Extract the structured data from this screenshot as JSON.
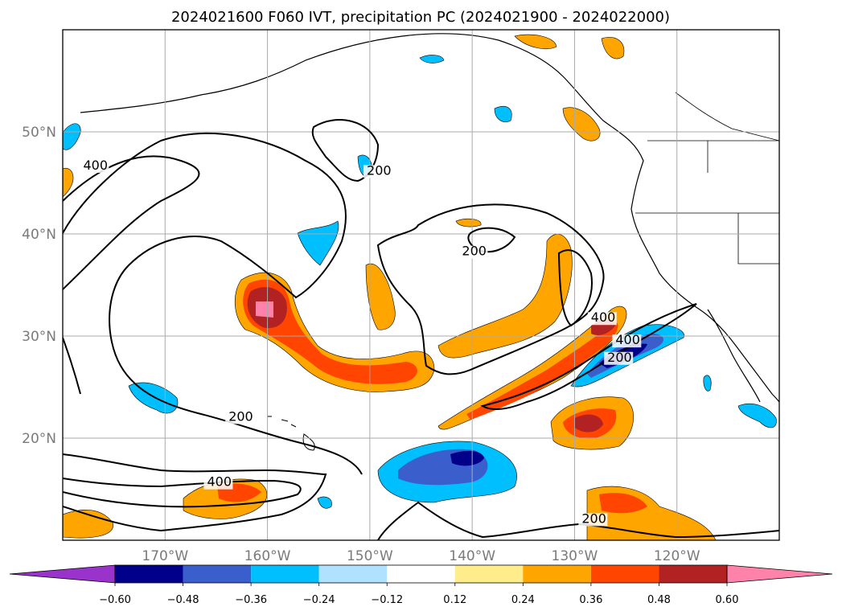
{
  "chart_data": {
    "type": "map-contour",
    "title": "2024021600 F060 IVT, precipitation PC (2024021900 - 2024022000)",
    "lon_ticks": [
      {
        "lon": -170,
        "label": "170°W"
      },
      {
        "lon": -160,
        "label": "160°W"
      },
      {
        "lon": -150,
        "label": "150°W"
      },
      {
        "lon": -140,
        "label": "140°W"
      },
      {
        "lon": -130,
        "label": "130°W"
      },
      {
        "lon": -120,
        "label": "120°W"
      }
    ],
    "lat_ticks": [
      {
        "lat": 50,
        "label": "50°N"
      },
      {
        "lat": 40,
        "label": "40°N"
      },
      {
        "lat": 30,
        "label": "30°N"
      },
      {
        "lat": 20,
        "label": "20°N"
      }
    ],
    "extent": {
      "lon": [
        -180,
        -110
      ],
      "lat": [
        10,
        60
      ]
    },
    "grid": true,
    "ivt_contour_levels": [
      200,
      400
    ],
    "ivt_contour_labels": [
      {
        "text": "400",
        "lon": -178,
        "lat": 46.3
      },
      {
        "text": "200",
        "lon": -150.3,
        "lat": 45.8
      },
      {
        "text": "200",
        "lon": -141,
        "lat": 37.9
      },
      {
        "text": "400",
        "lon": -128.4,
        "lat": 31.4
      },
      {
        "text": "400",
        "lon": -126,
        "lat": 29.2
      },
      {
        "text": "200",
        "lon": -126.8,
        "lat": 27.5
      },
      {
        "text": "200",
        "lon": -163.8,
        "lat": 21.7
      },
      {
        "text": "400",
        "lon": -165.9,
        "lat": 15.3
      },
      {
        "text": "200",
        "lon": -129.3,
        "lat": 11.7
      }
    ],
    "colorbar": {
      "boundaries": [
        -0.72,
        -0.6,
        -0.48,
        -0.36,
        -0.24,
        -0.12,
        0.12,
        0.24,
        0.36,
        0.48,
        0.6,
        0.72
      ],
      "tick_labels": [
        "−0.60",
        "−0.48",
        "−0.36",
        "−0.24",
        "−0.12",
        "0.12",
        "0.24",
        "0.36",
        "0.48",
        "0.60"
      ],
      "colors": [
        "#9933cc",
        "#00008b",
        "#3a5fcd",
        "#00bfff",
        "#b0e2ff",
        "#ffffff",
        "#ffec8b",
        "#ffa500",
        "#ff4500",
        "#b22222",
        "#ff82ab"
      ],
      "extend": "both"
    }
  }
}
